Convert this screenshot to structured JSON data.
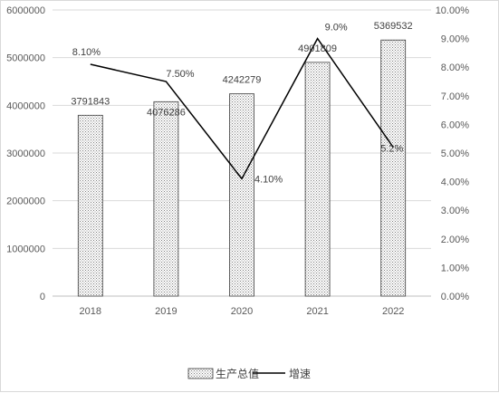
{
  "chart_data": {
    "type": "bar",
    "categories": [
      "2018",
      "2019",
      "2020",
      "2021",
      "2022"
    ],
    "series": [
      {
        "name": "生产总值",
        "type": "bar",
        "axis": "left",
        "values": [
          3791843,
          4076286,
          4242279,
          4901809,
          5369532
        ],
        "labels": [
          "3791843",
          "4076286",
          "4242279",
          "4901809",
          "5369532"
        ],
        "pattern": "dotted"
      },
      {
        "name": "增速",
        "type": "line",
        "axis": "right",
        "values": [
          8.1,
          7.5,
          4.1,
          9.0,
          5.2
        ],
        "labels": [
          "8.10%",
          "7.50%",
          "4.10%",
          "9.0%",
          "5.2%"
        ],
        "color": "#000000"
      }
    ],
    "y_left": {
      "ylim": [
        0,
        6000000
      ],
      "ticks": [
        "0",
        "1000000",
        "2000000",
        "3000000",
        "4000000",
        "5000000",
        "6000000"
      ]
    },
    "y_right": {
      "ylim": [
        0,
        10
      ],
      "ticks": [
        "0.00%",
        "1.00%",
        "2.00%",
        "3.00%",
        "4.00%",
        "5.00%",
        "6.00%",
        "7.00%",
        "8.00%",
        "9.00%",
        "10.00%"
      ]
    },
    "grid": true,
    "legend_position": "bottom",
    "title": "",
    "xlabel": "",
    "ylabel": ""
  }
}
